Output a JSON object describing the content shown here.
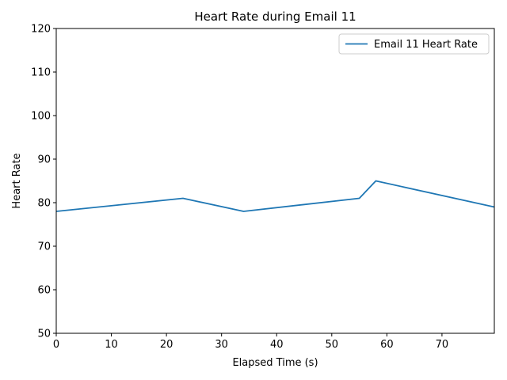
{
  "chart_data": {
    "type": "line",
    "title": "Heart Rate during Email 11",
    "xlabel": "Elapsed Time (s)",
    "ylabel": "Heart Rate",
    "xlim": [
      0,
      79.5
    ],
    "ylim": [
      50,
      120
    ],
    "xticks": [
      0,
      10,
      20,
      30,
      40,
      50,
      60,
      70
    ],
    "yticks": [
      50,
      60,
      70,
      80,
      90,
      100,
      110,
      120
    ],
    "grid": false,
    "legend_position": "top-right",
    "series": [
      {
        "name": "Email 11 Heart Rate",
        "color": "#1f77b4",
        "x": [
          0,
          23,
          34,
          55,
          58,
          79.5
        ],
        "y": [
          78,
          81,
          78,
          81,
          85,
          79
        ]
      }
    ]
  }
}
